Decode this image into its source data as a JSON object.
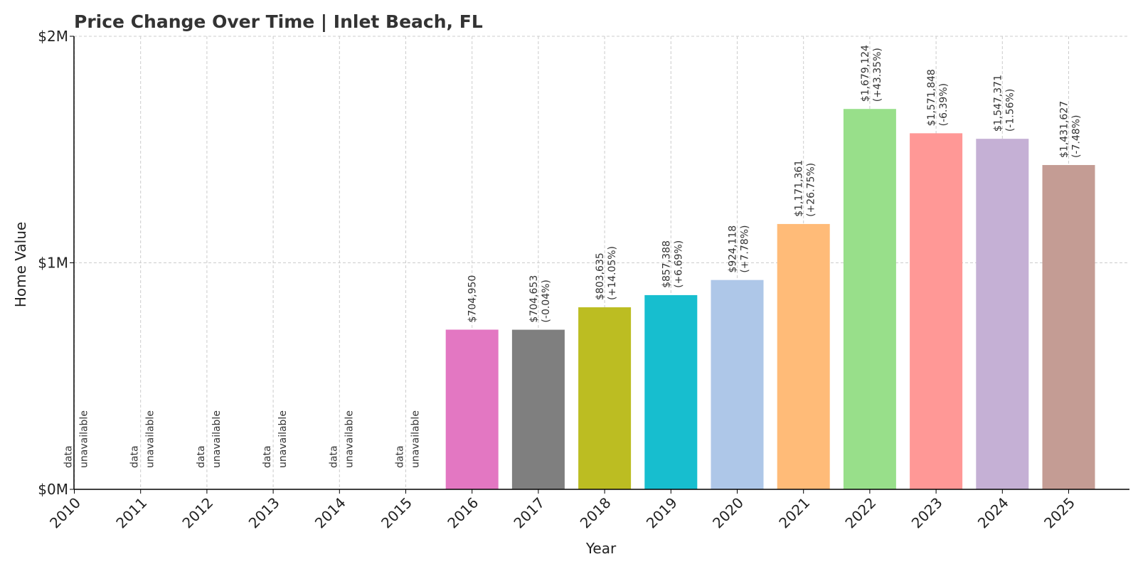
{
  "chart_data": {
    "type": "bar",
    "title": "Price Change Over Time | Inlet Beach, FL",
    "xlabel": "Year",
    "ylabel": "Home Value",
    "ylim": [
      0,
      2000000
    ],
    "grid": true,
    "y_ticks": [
      {
        "value": 0,
        "label": "$0M"
      },
      {
        "value": 1000000,
        "label": "$1M"
      },
      {
        "value": 2000000,
        "label": "$2M"
      }
    ],
    "categories": [
      "2010",
      "2011",
      "2012",
      "2013",
      "2014",
      "2015",
      "2016",
      "2017",
      "2018",
      "2019",
      "2020",
      "2021",
      "2022",
      "2023",
      "2024",
      "2025"
    ],
    "values": [
      null,
      null,
      null,
      null,
      null,
      null,
      704950,
      704653,
      803635,
      857388,
      924118,
      1171361,
      1679124,
      1571848,
      1547371,
      1431627
    ],
    "value_labels": [
      "",
      "",
      "",
      "",
      "",
      "",
      "$704,950",
      "$704,653",
      "$803,635",
      "$857,388",
      "$924,118",
      "$1,171,361",
      "$1,679,124",
      "$1,571,848",
      "$1,547,371",
      "$1,431,627"
    ],
    "change_labels": [
      "",
      "",
      "",
      "",
      "",
      "",
      "",
      "(-0.04%)",
      "(+14.05%)",
      "(+6.69%)",
      "(+7.78%)",
      "(+26.75%)",
      "(+43.35%)",
      "(-6.39%)",
      "(-1.56%)",
      "(-7.48%)"
    ],
    "unavailable_text": [
      "data",
      "unavailable"
    ],
    "colors": [
      "#1f77b4",
      "#ff7f0e",
      "#2ca02c",
      "#d62728",
      "#9467bd",
      "#8c564b",
      "#e377c2",
      "#7f7f7f",
      "#bcbd22",
      "#17becf",
      "#aec7e8",
      "#ffbb78",
      "#98df8a",
      "#ff9896",
      "#c5b0d5",
      "#c49c94"
    ]
  }
}
